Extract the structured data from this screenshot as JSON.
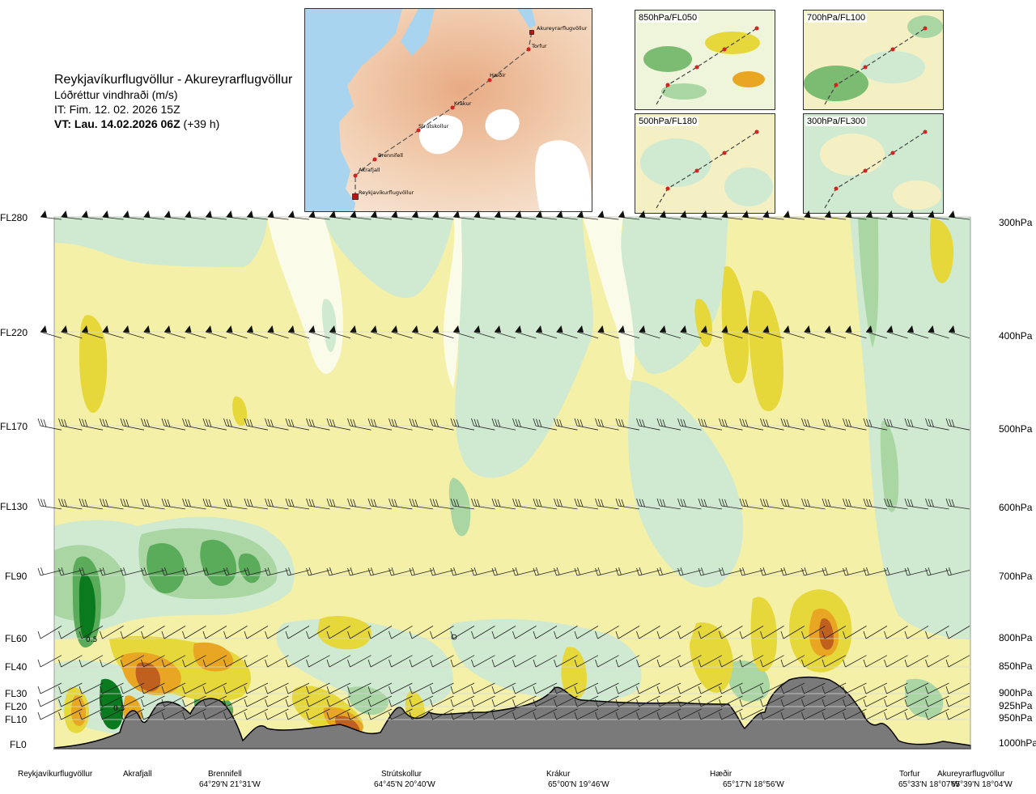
{
  "header": {
    "route": "Reykjavíkurflugvöllur - Akureyrarflugvöllur",
    "parameter": "Lóðréttur vindhraði (m/s)",
    "issue_time": "IT: Fim. 12. 02. 2026 15Z",
    "valid_label": "VT: Lau. 14.02.2026 06Z",
    "valid_offset": "(+39 h)"
  },
  "route_map": {
    "waypoints": [
      "Akureyrarflugvöllur",
      "Torfur",
      "Hæðir",
      "Krákur",
      "Strútskollur",
      "Brennifell",
      "Akrafjall",
      "Reykjavíkurflugvöllur"
    ]
  },
  "level_panels": [
    {
      "label": "850hPa/FL050"
    },
    {
      "label": "700hPa/FL100"
    },
    {
      "label": "500hPa/FL180"
    },
    {
      "label": "300hPa/FL300"
    }
  ],
  "colors": {
    "strong_down": "#0a7a1e",
    "mod_down": "#5aab5a",
    "weak_down": "#a9d6a3",
    "slight_down": "#cfead0",
    "neutral": "#fafbe8",
    "slight_up": "#f5f0a7",
    "weak_up": "#e6d73a",
    "mod_up": "#e8a623",
    "strong_up": "#c0601e",
    "terrain": "#7a7a7a"
  },
  "chart_data": {
    "type": "heatmap",
    "title": "Reykjavíkurflugvöllur - Akureyrarflugvöllur",
    "value_label": "Lóðréttur vindhraði (m/s)",
    "flight_levels": [
      "FL280",
      "FL220",
      "FL170",
      "FL130",
      "FL90",
      "FL60",
      "FL40",
      "FL30",
      "FL20",
      "FL10",
      "FL0"
    ],
    "pressure_levels": [
      "300hPa",
      "400hPa",
      "500hPa",
      "600hPa",
      "700hPa",
      "800hPa",
      "850hPa",
      "900hPa",
      "925hPa",
      "950hPa",
      "1000hPa"
    ],
    "contour_labels": [
      "0.5",
      "0.5"
    ],
    "locations": [
      {
        "name": "Reykjavíkurflugvöllur",
        "coord": ""
      },
      {
        "name": "Akrafjall",
        "coord": ""
      },
      {
        "name": "Brennifell",
        "coord": "64°29'N 21°31'W"
      },
      {
        "name": "Strútskollur",
        "coord": "64°45'N 20°40'W"
      },
      {
        "name": "Krákur",
        "coord": "65°00'N 19°46'W"
      },
      {
        "name": "Hæðir",
        "coord": "65°17'N 18°56'W"
      },
      {
        "name": "Torfur",
        "coord": "65°33'N 18°07'W"
      },
      {
        "name": "Akureyrarflugvöllur",
        "coord": "65°39'N 18°04'W"
      }
    ]
  }
}
